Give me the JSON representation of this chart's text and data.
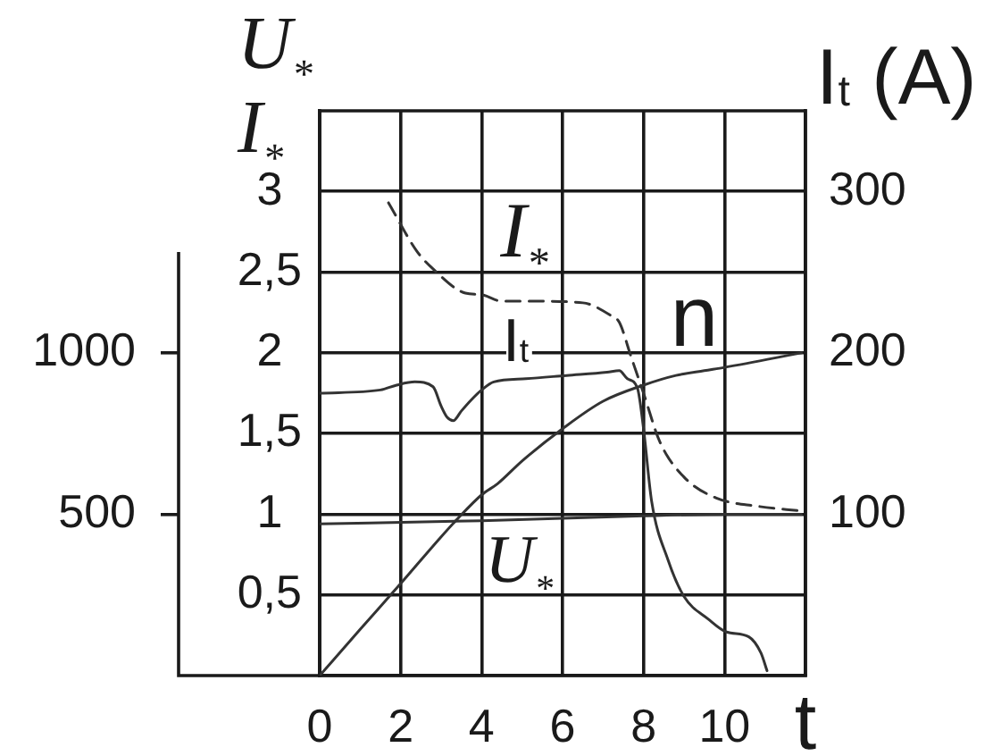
{
  "chart_data": {
    "type": "line",
    "xlabel": "t",
    "ylabel": "U$_{*}$ I$_{*}$",
    "y2label": "I$_{t}$ (A)",
    "xlim": [
      0,
      12
    ],
    "xticks": [
      0,
      2,
      4,
      6,
      8,
      10
    ],
    "ylim": [
      0,
      3.5
    ],
    "yticks": [
      {
        "value": 0.5,
        "label": "0,5"
      },
      1,
      {
        "value": 1.5,
        "label": "1,5"
      },
      2,
      {
        "value": 2.5,
        "label": "2,5"
      },
      3
    ],
    "y2lim": [
      0,
      350
    ],
    "y2ticks": [
      100,
      200,
      300
    ],
    "y3lim": [
      0,
      1750
    ],
    "y3ticks": [
      500,
      1000
    ],
    "grid": true,
    "marker": "none",
    "series": [
      {
        "name": "I$_{*}$",
        "color": "#333333",
        "line_style": "dashed",
        "axis": "y",
        "x": [
          1.7,
          2.4,
          2.8,
          3.6,
          4.0,
          4.5,
          5.3,
          6.5,
          7.2,
          7.4,
          7.7,
          8.0,
          8.4,
          9.0,
          9.8,
          10.8,
          11.9
        ],
        "values": [
          2.93,
          2.63,
          2.52,
          2.37,
          2.36,
          2.32,
          2.32,
          2.31,
          2.23,
          2.19,
          1.97,
          1.75,
          1.45,
          1.23,
          1.1,
          1.05,
          1.02
        ]
      },
      {
        "name": "I$_{t}$",
        "color": "#333333",
        "line_style": "solid",
        "axis": "y2",
        "x": [
          0,
          1.5,
          1.9,
          2.35,
          2.8,
          3.0,
          3.15,
          3.3,
          3.5,
          3.75,
          4.0,
          4.3,
          5.1,
          6.1,
          7.1,
          7.4,
          7.6,
          7.85,
          8.0,
          8.2,
          8.6,
          9.0,
          9.6,
          10.05,
          10.6,
          10.9,
          11.05
        ],
        "values": [
          175,
          177,
          180,
          182,
          179,
          167,
          160,
          158,
          164,
          171,
          177,
          182,
          184,
          186,
          188,
          189,
          184,
          178,
          153,
          108,
          72,
          49,
          35,
          27,
          24,
          14,
          3
        ]
      },
      {
        "name": "n",
        "color": "#333333",
        "line_style": "solid",
        "axis": "y3",
        "x": [
          0,
          1,
          2,
          3,
          3.4,
          4.0,
          4.4,
          5.0,
          6.0,
          7.0,
          8.0,
          8.8,
          9.5,
          10.0,
          11.9
        ],
        "values": [
          0,
          143,
          285,
          430,
          485,
          560,
          595,
          665,
          765,
          850,
          900,
          930,
          945,
          955,
          1000
        ]
      },
      {
        "name": "U$_{*}$",
        "color": "#333333",
        "line_style": "solid",
        "axis": "y",
        "x": [
          0,
          4,
          8,
          10,
          11.9
        ],
        "values": [
          0.94,
          0.96,
          0.99,
          1.0,
          1.0
        ]
      }
    ]
  }
}
